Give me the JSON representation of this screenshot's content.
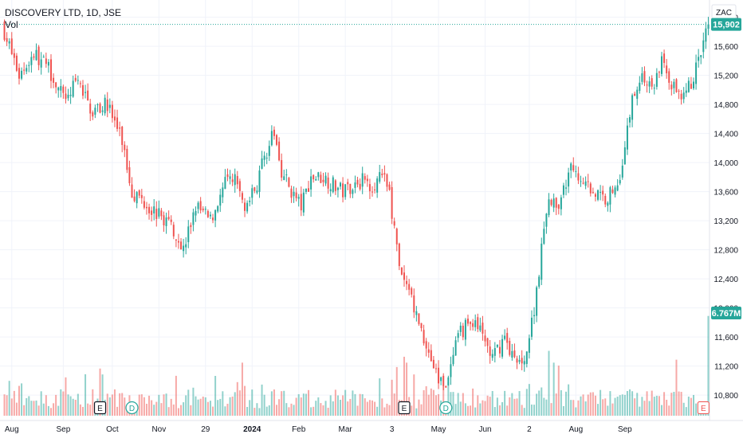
{
  "header": {
    "title": "DISCOVERY LTD, 1D, JSE",
    "volume_label": "Vol",
    "currency": "ZAC"
  },
  "colors": {
    "up": "#26a69a",
    "down": "#ef5350",
    "up_volume": "#26a69a",
    "down_volume": "#ef5350",
    "grid": "#f0f3fa",
    "price_line": "#26a69a",
    "axis_text": "#131722"
  },
  "chart_data": {
    "type": "candlestick",
    "title": "DISCOVERY LTD, 1D, JSE",
    "y_unit": "ZAC",
    "ylim": [
      10450,
      16150
    ],
    "grid": true,
    "y_ticks": [
      "16,000",
      "15,600",
      "15,200",
      "14,800",
      "14,400",
      "14,000",
      "13,600",
      "13,200",
      "12,800",
      "12,400",
      "12,000",
      "11,600",
      "11,200",
      "10,800"
    ],
    "x_ticks": [
      "Aug",
      "Sep",
      "Oct",
      "Nov",
      "29",
      "2024",
      "Feb",
      "Mar",
      "3",
      "May",
      "Jun",
      "2",
      "Aug",
      "Sep"
    ],
    "x_tick_bold": "2024",
    "last_price": "15,902",
    "last_price_value": 15902,
    "last_volume": "6.767M",
    "last_volume_value": 6767000,
    "volume_max": 7400000,
    "price_path": [
      [
        0,
        15800
      ],
      [
        6,
        15200
      ],
      [
        12,
        15500
      ],
      [
        18,
        15300
      ],
      [
        24,
        14900
      ],
      [
        30,
        15100
      ],
      [
        36,
        14700
      ],
      [
        42,
        14800
      ],
      [
        48,
        14300
      ],
      [
        52,
        13600
      ],
      [
        56,
        13500
      ],
      [
        62,
        13300
      ],
      [
        68,
        13150
      ],
      [
        73,
        12800
      ],
      [
        78,
        13400
      ],
      [
        84,
        13200
      ],
      [
        90,
        13700
      ],
      [
        94,
        13800
      ],
      [
        98,
        13350
      ],
      [
        103,
        13700
      ],
      [
        106,
        14100
      ],
      [
        110,
        14400
      ],
      [
        113,
        13900
      ],
      [
        117,
        13600
      ],
      [
        121,
        13400
      ],
      [
        125,
        13800
      ],
      [
        130,
        13800
      ],
      [
        134,
        13700
      ],
      [
        138,
        13600
      ],
      [
        142,
        13700
      ],
      [
        146,
        13750
      ],
      [
        150,
        13700
      ],
      [
        154,
        13800
      ],
      [
        157,
        13600
      ],
      [
        161,
        12500
      ],
      [
        165,
        12200
      ],
      [
        169,
        11800
      ],
      [
        173,
        11400
      ],
      [
        177,
        11000
      ],
      [
        181,
        11000
      ],
      [
        185,
        11600
      ],
      [
        189,
        11800
      ],
      [
        194,
        11700
      ],
      [
        199,
        11300
      ],
      [
        204,
        11600
      ],
      [
        209,
        11200
      ],
      [
        213,
        11400
      ],
      [
        216,
        12000
      ],
      [
        219,
        12800
      ],
      [
        222,
        13500
      ],
      [
        226,
        13300
      ],
      [
        230,
        13900
      ],
      [
        235,
        13800
      ],
      [
        240,
        13600
      ],
      [
        245,
        13500
      ],
      [
        250,
        13700
      ],
      [
        253,
        14200
      ],
      [
        256,
        14900
      ],
      [
        260,
        15200
      ],
      [
        264,
        15000
      ],
      [
        268,
        15400
      ],
      [
        272,
        15100
      ],
      [
        276,
        14800
      ],
      [
        280,
        15100
      ],
      [
        284,
        15500
      ],
      [
        287,
        15902
      ]
    ],
    "volume_spikes": [
      [
        25,
        2.6
      ],
      [
        39,
        3.2
      ],
      [
        40,
        2.8
      ],
      [
        86,
        2.7
      ],
      [
        97,
        3.6
      ],
      [
        160,
        3.3
      ],
      [
        163,
        4.0
      ],
      [
        164,
        3.6
      ],
      [
        167,
        2.8
      ],
      [
        222,
        4.4
      ],
      [
        224,
        3.6
      ],
      [
        226,
        3.4
      ],
      [
        274,
        3.8
      ],
      [
        287,
        6.767
      ]
    ],
    "events": [
      {
        "label": "E",
        "index": 39,
        "kind": "earnings"
      },
      {
        "label": "D",
        "index": 52,
        "kind": "dividend"
      },
      {
        "label": "E",
        "index": 163,
        "kind": "earnings"
      },
      {
        "label": "D",
        "index": 180,
        "kind": "dividend"
      },
      {
        "label": "E",
        "index": 285,
        "kind": "earnings-upcoming"
      }
    ],
    "candle_count": 288
  }
}
